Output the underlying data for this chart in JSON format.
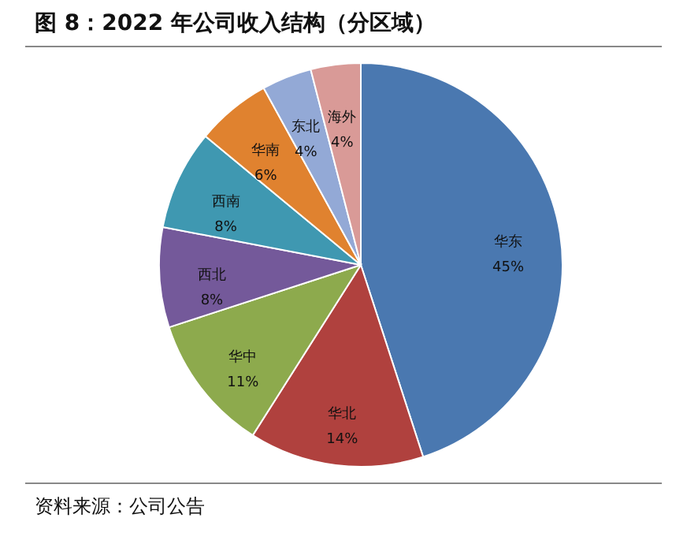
{
  "chart_data": {
    "type": "pie",
    "title": "图 8：2022 年公司收入结构（分区域）",
    "categories": [
      "华东",
      "华北",
      "华中",
      "西北",
      "西南",
      "华南",
      "东北",
      "海外"
    ],
    "values": [
      45,
      14,
      11,
      8,
      8,
      6,
      4,
      4
    ],
    "value_labels": [
      "45%",
      "14%",
      "11%",
      "8%",
      "8%",
      "6%",
      "4%",
      "4%"
    ],
    "colors": [
      "#4a78b0",
      "#b0413e",
      "#8daa4d",
      "#74599a",
      "#3f98b1",
      "#e0822f",
      "#93a9d6",
      "#d99a97"
    ],
    "annotations": [
      "资料来源：公司公告"
    ],
    "legend": false
  }
}
